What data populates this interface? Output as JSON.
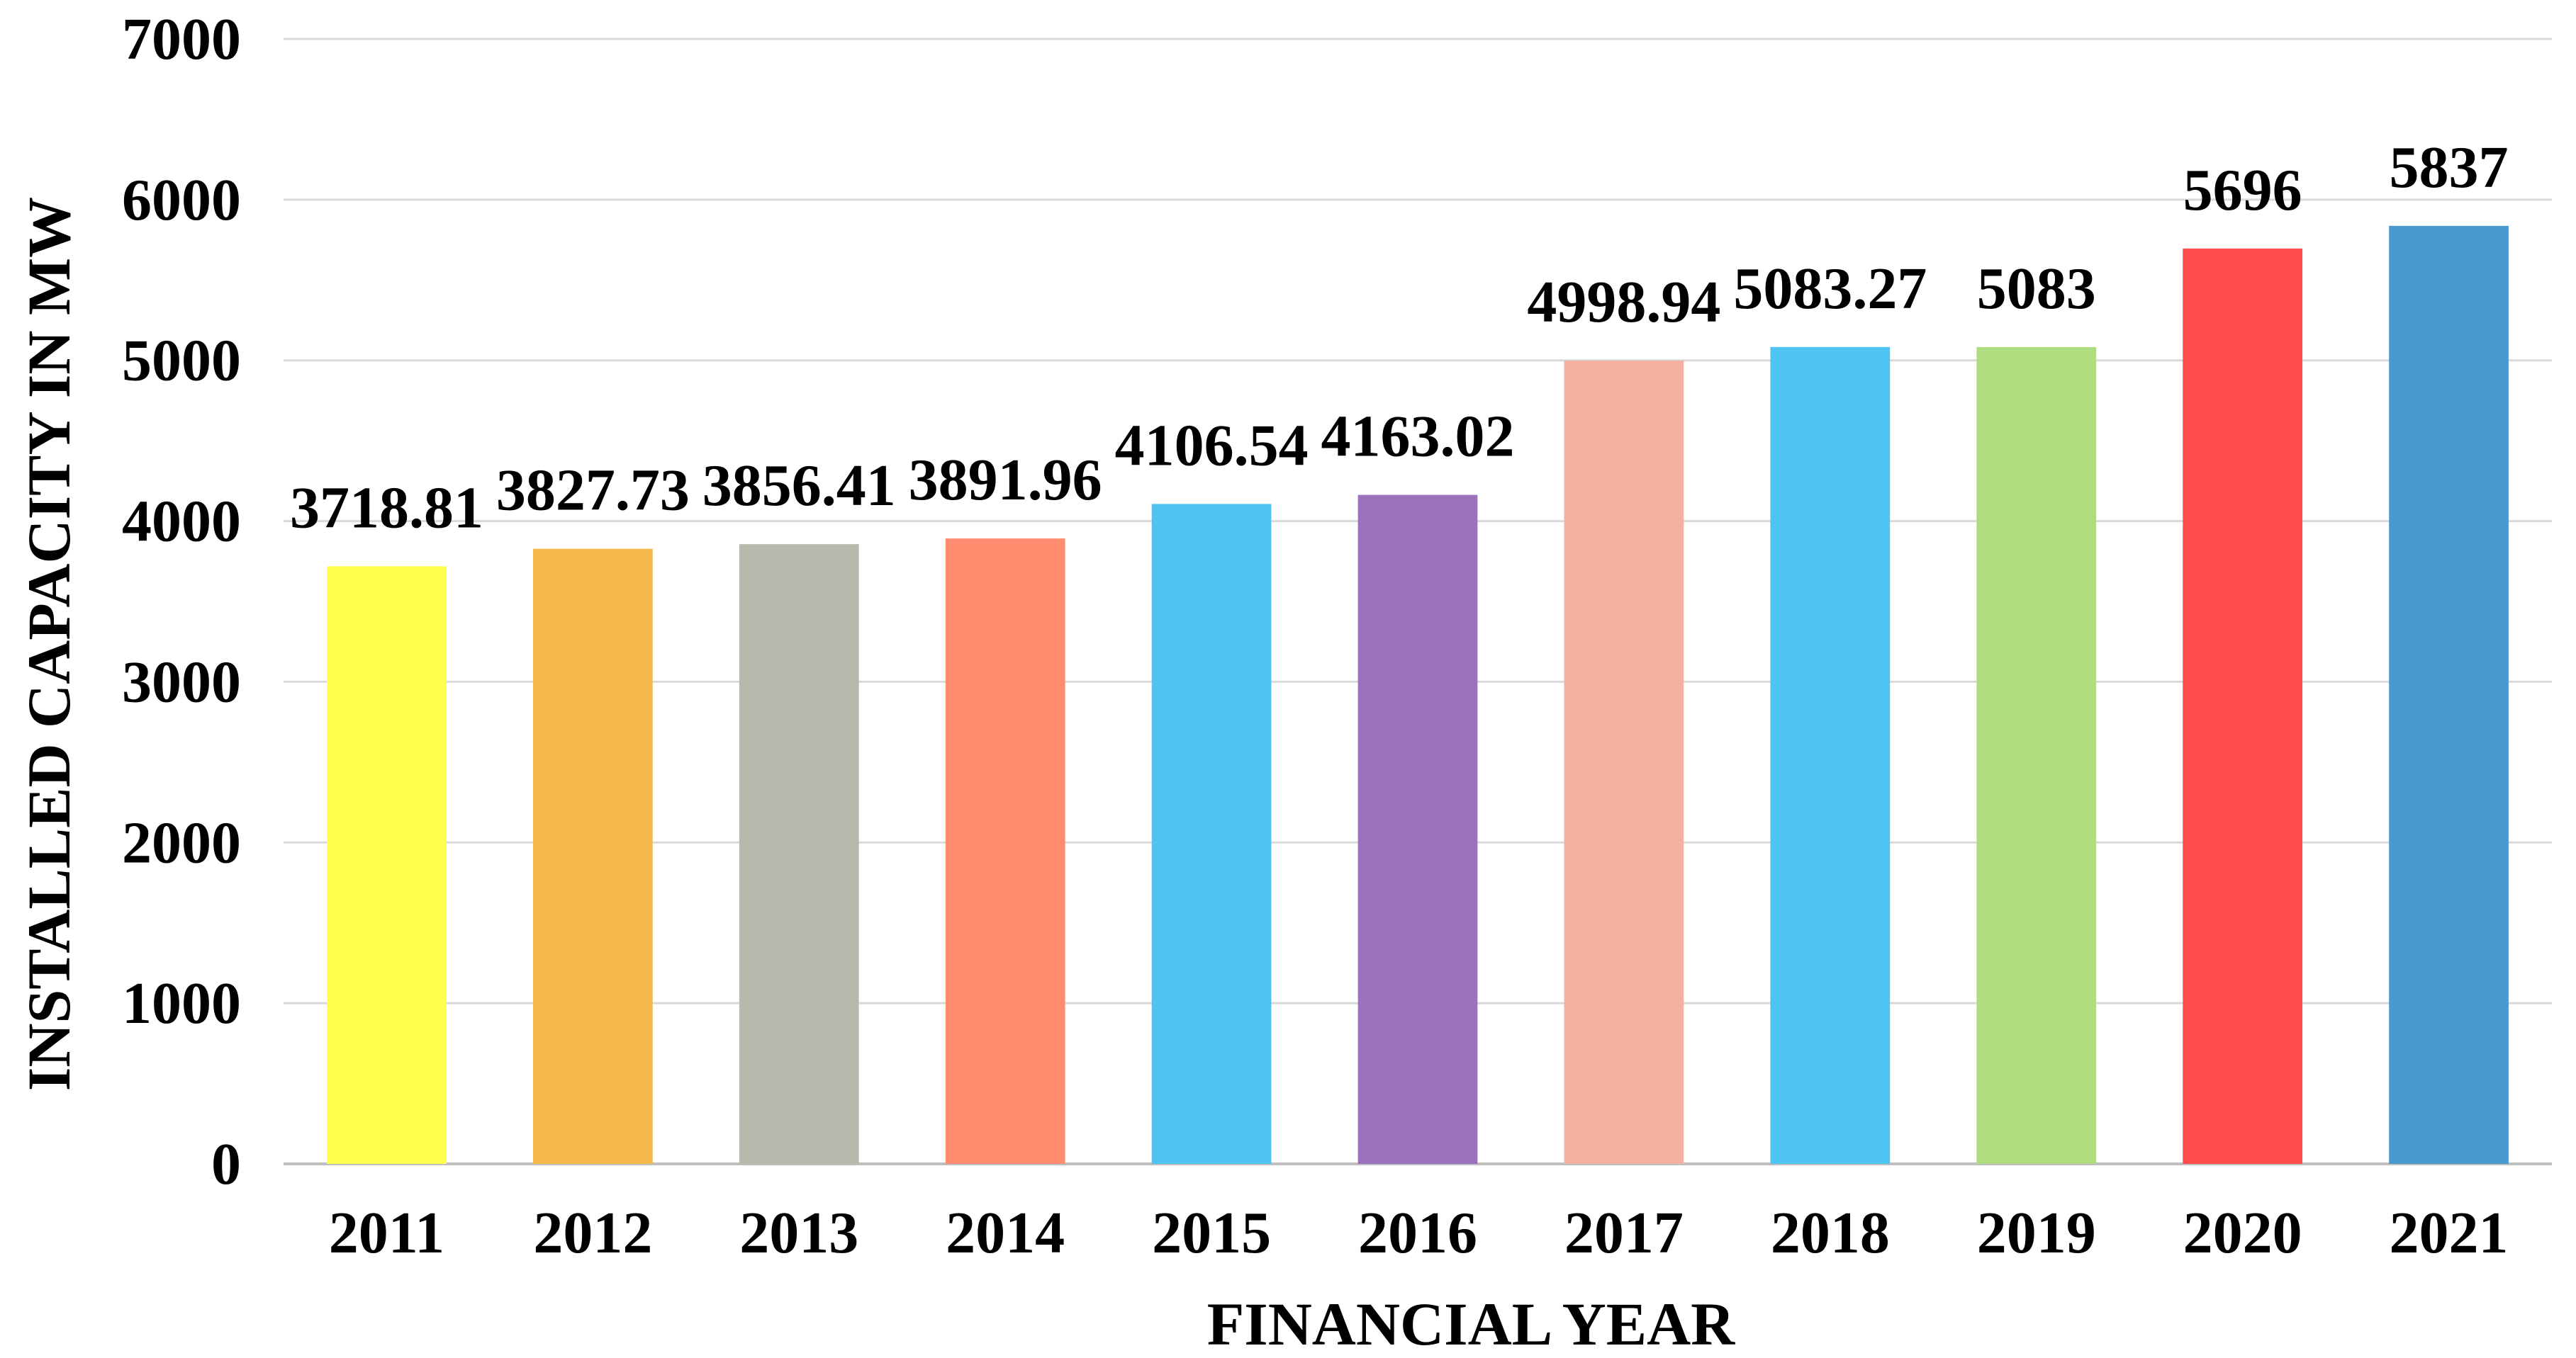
{
  "chart_data": {
    "type": "bar",
    "title": "",
    "xlabel": "FINANCIAL YEAR",
    "ylabel": "INSTALLED CAPACITY IN MW",
    "categories": [
      "2011",
      "2012",
      "2013",
      "2014",
      "2015",
      "2016",
      "2017",
      "2018",
      "2019",
      "2020",
      "2021"
    ],
    "values": [
      3718.81,
      3827.73,
      3856.41,
      3891.96,
      4106.54,
      4163.02,
      4998.94,
      5083.27,
      5083,
      5696,
      5837
    ],
    "data_labels": [
      "3718.81",
      "3827.73",
      "3856.41",
      "3891.96",
      "4106.54",
      "4163.02",
      "4998.94",
      "5083.27",
      "5083",
      "5696",
      "5837"
    ],
    "bar_colors": [
      "#ffff4d",
      "#f5b84d",
      "#b8b8ad",
      "#ff8c6e",
      "#4dc4f2",
      "#9b72bd",
      "#f4b0a0",
      "#4dc4f2",
      "#b0dc80",
      "#ff4d4d",
      "#4a9ad0"
    ],
    "ylim": [
      0,
      7000
    ],
    "yticks": [
      "0",
      "1000",
      "2000",
      "3000",
      "4000",
      "5000",
      "6000",
      "7000"
    ],
    "grid": true,
    "legend": "none"
  }
}
